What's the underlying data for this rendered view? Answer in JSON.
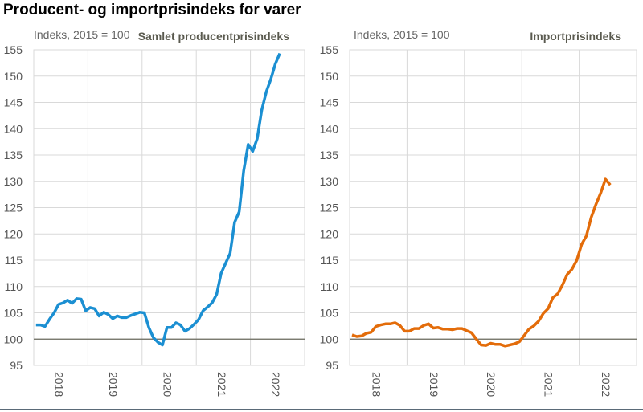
{
  "title": "Producent- og importprisindeks for varer",
  "chart_data": [
    {
      "type": "line",
      "subtitle": "Indeks, 2015 = 100",
      "series_title": "Samlet producentprisindeks",
      "color": "#1b8fd2",
      "ylim": [
        95,
        155
      ],
      "yticks": [
        95,
        100,
        105,
        110,
        115,
        120,
        125,
        130,
        135,
        140,
        145,
        150,
        155
      ],
      "xticks": [
        "2018",
        "2019",
        "2020",
        "2021",
        "2022"
      ],
      "x_start": "2018-01",
      "x_frequency": "monthly",
      "reference_line": 100,
      "grid": true,
      "values": [
        102.7,
        102.7,
        102.4,
        103.8,
        105.0,
        106.6,
        106.9,
        107.4,
        106.8,
        107.7,
        107.6,
        105.4,
        106.0,
        105.8,
        104.4,
        105.1,
        104.7,
        103.9,
        104.4,
        104.1,
        104.1,
        104.5,
        104.8,
        105.1,
        105.0,
        102.2,
        100.3,
        99.4,
        98.9,
        102.2,
        102.2,
        103.1,
        102.7,
        101.5,
        102.0,
        102.8,
        103.7,
        105.4,
        106.1,
        106.9,
        108.5,
        112.5,
        114.4,
        116.3,
        122.2,
        124.2,
        132.0,
        137.0,
        135.7,
        138.1,
        143.5,
        147.0,
        149.4,
        152.3,
        154.3
      ]
    },
    {
      "type": "line",
      "subtitle": "Indeks, 2015 = 100",
      "series_title": "Importprisindeks",
      "color": "#e36c0a",
      "ylim": [
        95,
        155
      ],
      "yticks": [
        95,
        100,
        105,
        110,
        115,
        120,
        125,
        130,
        135,
        140,
        145,
        150,
        155
      ],
      "xticks": [
        "2018",
        "2019",
        "2020",
        "2021",
        "2022"
      ],
      "x_start": "2018-01",
      "x_frequency": "monthly",
      "reference_line": 100,
      "grid": true,
      "values": [
        100.8,
        100.5,
        100.6,
        101.1,
        101.3,
        102.4,
        102.7,
        102.9,
        102.9,
        103.1,
        102.6,
        101.5,
        101.5,
        102.0,
        102.0,
        102.6,
        102.9,
        102.1,
        102.2,
        101.9,
        101.9,
        101.8,
        102.0,
        102.0,
        101.6,
        101.2,
        100.0,
        98.9,
        98.8,
        99.2,
        99.0,
        99.0,
        98.7,
        98.9,
        99.1,
        99.5,
        100.7,
        101.9,
        102.5,
        103.4,
        104.9,
        105.8,
        107.9,
        108.6,
        110.3,
        112.3,
        113.3,
        115.0,
        118.0,
        119.6,
        123.1,
        125.6,
        127.8,
        130.4,
        129.3
      ]
    }
  ]
}
